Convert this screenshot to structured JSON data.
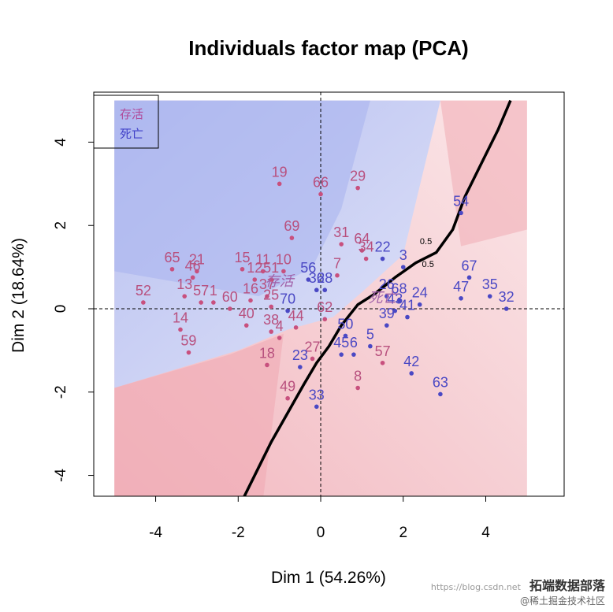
{
  "chart_data": {
    "type": "scatter",
    "title": "Individuals factor map (PCA)",
    "xlabel": "Dim 1 (54.26%)",
    "ylabel": "Dim 2 (18.64%)",
    "xlim": [
      -5.5,
      5.9
    ],
    "ylim": [
      -4.5,
      5.2
    ],
    "xticks": [
      -4,
      -2,
      0,
      2,
      4
    ],
    "yticks": [
      -4,
      -2,
      0,
      2,
      4
    ],
    "grid": false,
    "legend": {
      "placement": "top-left",
      "entries": [
        {
          "name": "存活",
          "color": "#b04a9a"
        },
        {
          "name": "死亡",
          "color": "#4040c8"
        }
      ]
    },
    "class_colors": {
      "survived_point": "#c8507e",
      "dead_point": "#4a48c4",
      "survived_label": "#b8507e",
      "dead_label": "#4a48c4"
    },
    "centroids": [
      {
        "label": "存活",
        "x": -1.0,
        "y": 0.55,
        "color": "#a060a8"
      },
      {
        "label": "死亡",
        "x": 1.5,
        "y": 0.15,
        "color": "#a060a8"
      }
    ],
    "contour_labels": [
      {
        "label": "0.5",
        "x": 2.55,
        "y": 1.55
      },
      {
        "label": "0.5",
        "x": 2.6,
        "y": 1.0
      }
    ],
    "decision_boundary": [
      [
        -1.9,
        -4.6
      ],
      [
        -1.6,
        -4.0
      ],
      [
        -1.2,
        -3.2
      ],
      [
        -0.8,
        -2.5
      ],
      [
        -0.4,
        -1.8
      ],
      [
        -0.1,
        -1.3
      ],
      [
        0.2,
        -0.9
      ],
      [
        0.5,
        -0.4
      ],
      [
        0.9,
        0.1
      ],
      [
        1.3,
        0.35
      ],
      [
        1.8,
        0.75
      ],
      [
        2.3,
        1.1
      ],
      [
        2.8,
        1.35
      ],
      [
        3.2,
        1.9
      ],
      [
        3.5,
        2.7
      ],
      [
        3.9,
        3.5
      ],
      [
        4.3,
        4.3
      ],
      [
        4.6,
        5.0
      ]
    ],
    "series": [
      {
        "name": "存活",
        "points": [
          {
            "label": "19",
            "x": -1.0,
            "y": 3.0
          },
          {
            "label": "66",
            "x": 0.0,
            "y": 2.75
          },
          {
            "label": "29",
            "x": 0.9,
            "y": 2.9
          },
          {
            "label": "69",
            "x": -0.7,
            "y": 1.7
          },
          {
            "label": "31",
            "x": 0.5,
            "y": 1.55
          },
          {
            "label": "64",
            "x": 1.0,
            "y": 1.4
          },
          {
            "label": "34",
            "x": 1.1,
            "y": 1.2
          },
          {
            "label": "65",
            "x": -3.6,
            "y": 0.95
          },
          {
            "label": "21",
            "x": -3.0,
            "y": 0.9
          },
          {
            "label": "46",
            "x": -3.1,
            "y": 0.75
          },
          {
            "label": "15",
            "x": -1.9,
            "y": 0.95
          },
          {
            "label": "11",
            "x": -1.4,
            "y": 0.9
          },
          {
            "label": "10",
            "x": -0.9,
            "y": 0.9
          },
          {
            "label": "12",
            "x": -1.6,
            "y": 0.7
          },
          {
            "label": "51",
            "x": -1.2,
            "y": 0.7
          },
          {
            "label": "7",
            "x": 0.4,
            "y": 0.8
          },
          {
            "label": "52",
            "x": -4.3,
            "y": 0.15
          },
          {
            "label": "13",
            "x": -3.3,
            "y": 0.3
          },
          {
            "label": "57",
            "x": -2.9,
            "y": 0.15
          },
          {
            "label": "1",
            "x": -2.6,
            "y": 0.15
          },
          {
            "label": "60",
            "x": -2.2,
            "y": 0.0
          },
          {
            "label": "16",
            "x": -1.7,
            "y": 0.2
          },
          {
            "label": "37",
            "x": -1.3,
            "y": 0.3
          },
          {
            "label": "25",
            "x": -1.2,
            "y": 0.05
          },
          {
            "label": "14",
            "x": -3.4,
            "y": -0.5
          },
          {
            "label": "40",
            "x": -1.8,
            "y": -0.4
          },
          {
            "label": "38",
            "x": -1.2,
            "y": -0.55
          },
          {
            "label": "4",
            "x": -1.0,
            "y": -0.7
          },
          {
            "label": "44",
            "x": -0.6,
            "y": -0.45
          },
          {
            "label": "62",
            "x": 0.1,
            "y": -0.25
          },
          {
            "label": "59",
            "x": -3.2,
            "y": -1.05
          },
          {
            "label": "18",
            "x": -1.3,
            "y": -1.35
          },
          {
            "label": "27",
            "x": -0.2,
            "y": -1.2
          },
          {
            "label": "8",
            "x": 0.9,
            "y": -1.9
          },
          {
            "label": "49",
            "x": -0.8,
            "y": -2.15
          },
          {
            "label": "57",
            "x": 1.5,
            "y": -1.3
          }
        ]
      },
      {
        "name": "死亡",
        "points": [
          {
            "label": "54",
            "x": 3.4,
            "y": 2.3
          },
          {
            "label": "22",
            "x": 1.5,
            "y": 1.2
          },
          {
            "label": "3",
            "x": 2.0,
            "y": 1.0
          },
          {
            "label": "67",
            "x": 3.6,
            "y": 0.75
          },
          {
            "label": "47",
            "x": 3.4,
            "y": 0.25
          },
          {
            "label": "35",
            "x": 4.1,
            "y": 0.3
          },
          {
            "label": "32",
            "x": 4.5,
            "y": 0.0
          },
          {
            "label": "56",
            "x": -0.3,
            "y": 0.7
          },
          {
            "label": "36",
            "x": -0.1,
            "y": 0.45
          },
          {
            "label": "28",
            "x": 0.1,
            "y": 0.45
          },
          {
            "label": "70",
            "x": -0.8,
            "y": -0.05
          },
          {
            "label": "26",
            "x": 1.6,
            "y": 0.3
          },
          {
            "label": "68",
            "x": 1.9,
            "y": 0.2
          },
          {
            "label": "24",
            "x": 2.4,
            "y": 0.1
          },
          {
            "label": "43",
            "x": 1.8,
            "y": -0.05
          },
          {
            "label": "41",
            "x": 2.1,
            "y": -0.2
          },
          {
            "label": "39",
            "x": 1.6,
            "y": -0.4
          },
          {
            "label": "50",
            "x": 0.6,
            "y": -0.65
          },
          {
            "label": "5",
            "x": 1.2,
            "y": -0.9
          },
          {
            "label": "45",
            "x": 0.5,
            "y": -1.1
          },
          {
            "label": "6",
            "x": 0.8,
            "y": -1.1
          },
          {
            "label": "42",
            "x": 2.2,
            "y": -1.55
          },
          {
            "label": "23",
            "x": -0.5,
            "y": -1.4
          },
          {
            "label": "63",
            "x": 2.9,
            "y": -2.05
          },
          {
            "label": "33",
            "x": -0.1,
            "y": -2.35
          }
        ]
      }
    ]
  },
  "watermark": {
    "url": "https://blog.csdn.net",
    "brand": "拓端数据部落",
    "sub": "@稀土掘金技术社区"
  }
}
